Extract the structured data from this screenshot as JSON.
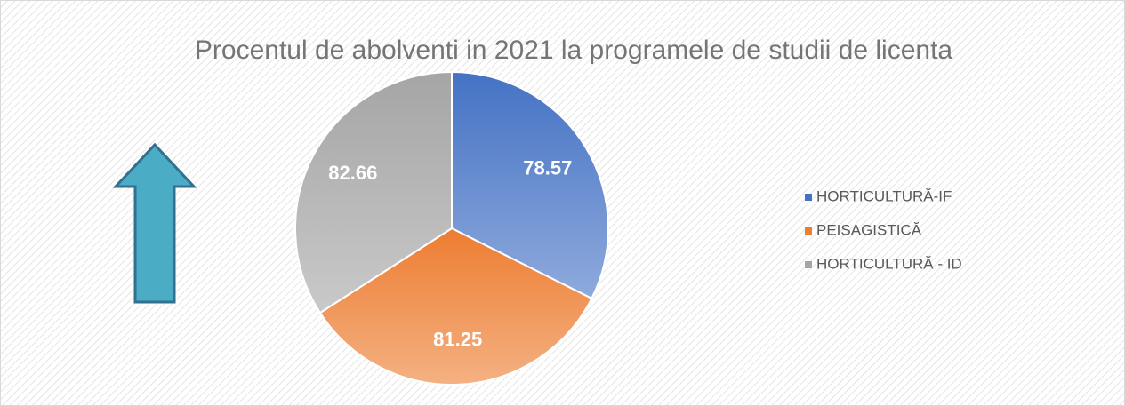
{
  "chart_data": {
    "type": "pie",
    "title": "Procentul de abolventi in 2021 la programele de studii de licenta",
    "categories": [
      "HORTICULTURĂ-IF",
      "PEISAGISTICĂ",
      "HORTICULTURĂ - ID"
    ],
    "values": [
      78.57,
      81.25,
      82.66
    ],
    "colors": [
      "#4472c4",
      "#ed7d31",
      "#a5a5a5"
    ],
    "legend": "right"
  }
}
